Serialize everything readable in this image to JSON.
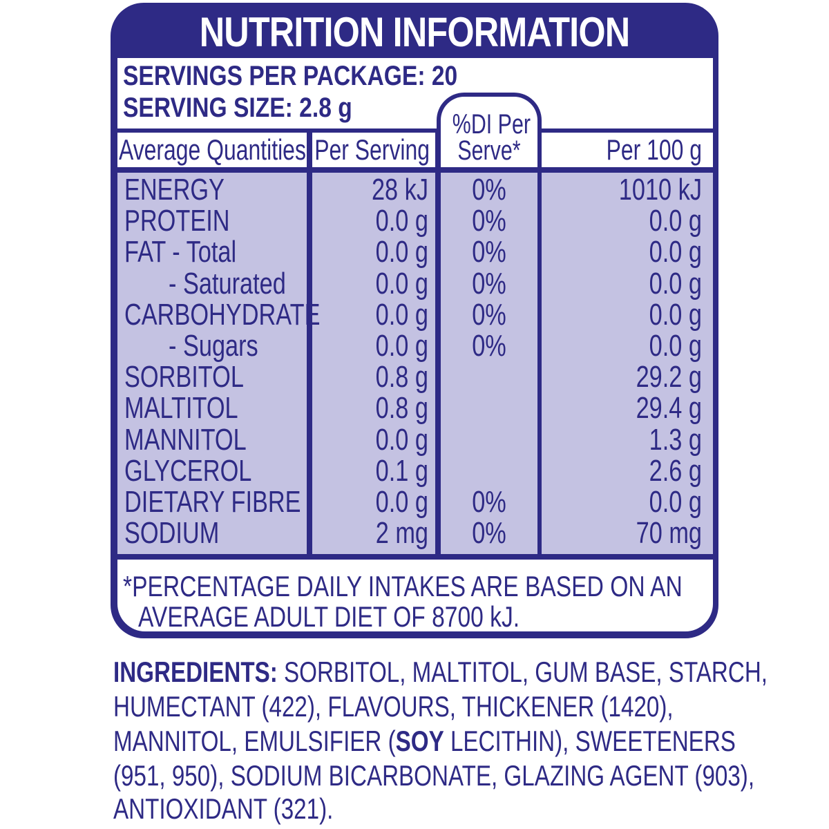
{
  "panel": {
    "title": "NUTRITION INFORMATION",
    "servings_per_package": "SERVINGS PER PACKAGE: 20",
    "serving_size": "SERVING SIZE: 2.8 g"
  },
  "columns": {
    "quantities": "Average Quantities",
    "per_serving": "Per Serving",
    "di_line1": "%DI Per",
    "di_line2": "Serve*",
    "per_100g": "Per 100 g"
  },
  "rows": [
    {
      "name": "ENERGY",
      "serving": "28 kJ",
      "di": "0%",
      "per100": "1010 kJ"
    },
    {
      "name": "PROTEIN",
      "serving": "0.0 g",
      "di": "0%",
      "per100": "0.0 g"
    },
    {
      "name": "FAT - Total",
      "serving": "0.0 g",
      "di": "0%",
      "per100": "0.0 g"
    },
    {
      "name": "- Saturated",
      "serving": "0.0 g",
      "di": "0%",
      "per100": "0.0 g"
    },
    {
      "name": "CARBOHYDRATE",
      "serving": "0.0 g",
      "di": "0%",
      "per100": "0.0 g"
    },
    {
      "name": "- Sugars",
      "serving": "0.0 g",
      "di": "0%",
      "per100": "0.0 g"
    },
    {
      "name": "SORBITOL",
      "serving": "0.8 g",
      "di": "",
      "per100": "29.2 g"
    },
    {
      "name": "MALTITOL",
      "serving": "0.8 g",
      "di": "",
      "per100": "29.4 g"
    },
    {
      "name": "MANNITOL",
      "serving": "0.0 g",
      "di": "",
      "per100": "1.3 g"
    },
    {
      "name": "GLYCEROL",
      "serving": "0.1 g",
      "di": "",
      "per100": "2.6 g"
    },
    {
      "name": "DIETARY FIBRE",
      "serving": "0.0 g",
      "di": "0%",
      "per100": "0.0 g"
    },
    {
      "name": "SODIUM",
      "serving": "2 mg",
      "di": "0%",
      "per100": "70 mg"
    }
  ],
  "footnote": {
    "line1": "*PERCENTAGE DAILY INTAKES ARE BASED ON AN",
    "line2": "AVERAGE ADULT DIET OF 8700 kJ."
  },
  "ingredients": {
    "label": "INGREDIENTS:",
    "line1": "SORBITOL, MALTITOL, GUM BASE, STARCH,",
    "line2": "HUMECTANT (422), FLAVOURS, THICKENER (1420),",
    "line3_a": "MANNITOL, EMULSIFIER (",
    "line3_allergen": "SOY",
    "line3_b": " LECITHIN), SWEETENERS",
    "line4": "(951, 950), SODIUM BICARBONATE, GLAZING AGENT (903),",
    "line5": "ANTIOXIDANT (321)."
  }
}
